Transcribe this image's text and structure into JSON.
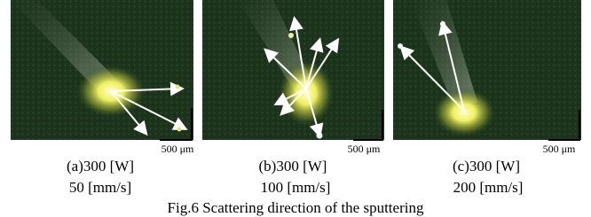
{
  "panels": [
    {
      "label": "(a)300 [W]",
      "speed": "50 [mm/s]",
      "scale": "500 μm"
    },
    {
      "label": "(b)300 [W]",
      "speed": "100 [mm/s]",
      "scale": "500 μm"
    },
    {
      "label": "(c)300 [W]",
      "speed": "200 [mm/s]",
      "scale": "500 μm"
    }
  ],
  "caption": "Fig.6 Scattering direction of the sputtering"
}
